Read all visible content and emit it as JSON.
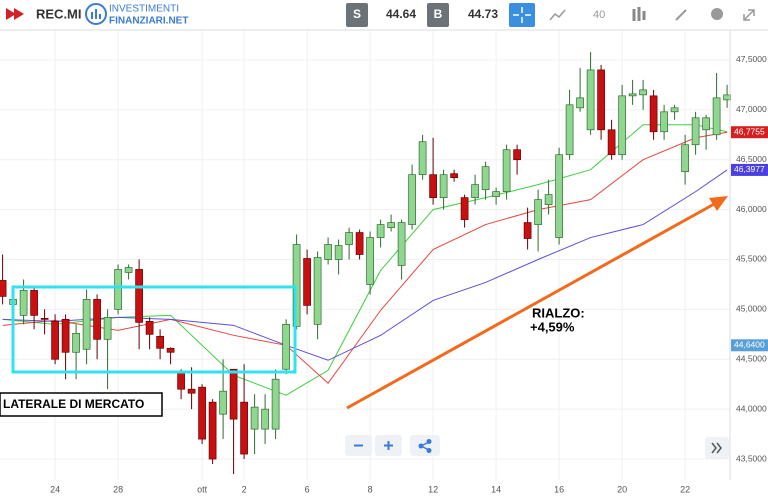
{
  "toolbar": {
    "symbol": "REC.MI",
    "brand_top": "INVESTIMENTI",
    "brand_bottom": "FINANZIARI.NET",
    "sell_label": "S",
    "sell": 44.64,
    "buy_label": "B",
    "buy": 44.73,
    "interval": "40"
  },
  "chart_data": {
    "type": "candlestick",
    "categories": [
      null,
      null,
      null,
      null,
      null,
      "24",
      null,
      null,
      null,
      null,
      null,
      "28",
      null,
      null,
      null,
      null,
      null,
      null,
      null,
      "ott",
      null,
      null,
      null,
      "2",
      null,
      null,
      null,
      null,
      null,
      "6",
      null,
      null,
      null,
      null,
      null,
      "8",
      null,
      null,
      null,
      null,
      null,
      "12",
      null,
      null,
      null,
      null,
      null,
      "14",
      null,
      null,
      null,
      null,
      null,
      "16",
      null,
      null,
      null,
      null,
      null,
      "20",
      null,
      null,
      null,
      null,
      null,
      "22",
      null,
      null,
      null,
      null
    ],
    "open": [
      45.29,
      45.05,
      44.94,
      45.19,
      44.91,
      44.88,
      44.9,
      44.57,
      44.6,
      45.1,
      44.7,
      45.0,
      45.37,
      45.4,
      44.88,
      44.73,
      44.61,
      44.37,
      44.2,
      44.22,
      44.07,
      43.95,
      44.4,
      44.07,
      43.8,
      43.8,
      43.8,
      44.4,
      44.83,
      45.51,
      44.85,
      45.5,
      45.5,
      45.65,
      45.77,
      45.25,
      45.72,
      45.82,
      45.44,
      45.85,
      46.35,
      46.35,
      46.12,
      46.36,
      46.12,
      46.12,
      46.2,
      46.13,
      46.18,
      46.6,
      45.87,
      45.85,
      46.05,
      45.72,
      46.55,
      47.02,
      46.8,
      47.4,
      46.8,
      46.55,
      47.14,
      47.15,
      47.14,
      46.78,
      46.98,
      46.38,
      46.65,
      46.8,
      46.75,
      47.1
    ],
    "high": [
      45.55,
      45.15,
      45.3,
      45.22,
      45.0,
      44.95,
      44.95,
      44.85,
      45.2,
      45.15,
      45.0,
      45.45,
      45.45,
      45.5,
      44.92,
      44.8,
      44.62,
      44.4,
      44.42,
      44.25,
      44.1,
      44.5,
      44.4,
      44.45,
      44.15,
      44.15,
      44.4,
      44.9,
      45.75,
      45.6,
      45.58,
      45.72,
      45.7,
      45.82,
      45.8,
      45.78,
      45.9,
      45.95,
      45.9,
      46.45,
      46.75,
      46.72,
      46.4,
      46.4,
      46.15,
      46.35,
      46.48,
      46.22,
      46.65,
      46.65,
      46.02,
      46.2,
      46.3,
      46.62,
      47.2,
      47.42,
      47.58,
      47.45,
      46.9,
      47.25,
      47.3,
      47.3,
      47.2,
      47.05,
      47.05,
      46.75,
      46.98,
      46.95,
      47.37,
      47.25
    ],
    "low": [
      45.05,
      45.0,
      44.85,
      44.8,
      44.75,
      44.45,
      44.3,
      44.3,
      44.45,
      44.5,
      44.2,
      44.95,
      45.3,
      44.6,
      44.6,
      44.5,
      44.45,
      44.1,
      44.0,
      43.65,
      43.45,
      43.7,
      43.35,
      43.5,
      43.55,
      43.65,
      43.7,
      44.35,
      44.8,
      44.95,
      44.7,
      45.45,
      45.35,
      45.5,
      45.5,
      45.15,
      45.62,
      45.78,
      45.3,
      45.8,
      46.3,
      46.05,
      46.0,
      46.28,
      45.82,
      46.05,
      46.1,
      46.05,
      46.1,
      46.35,
      45.6,
      45.58,
      45.95,
      45.65,
      46.5,
      46.98,
      46.75,
      46.7,
      46.5,
      46.5,
      47.05,
      47.0,
      46.7,
      46.7,
      46.9,
      46.25,
      46.55,
      46.6,
      46.7,
      47.02
    ],
    "close": [
      45.13,
      45.1,
      45.19,
      44.94,
      44.9,
      44.5,
      44.57,
      44.76,
      45.1,
      44.7,
      44.92,
      45.4,
      45.42,
      44.87,
      44.75,
      44.61,
      44.57,
      44.2,
      44.16,
      43.7,
      43.5,
      44.18,
      43.9,
      43.55,
      44.02,
      44.0,
      44.3,
      44.85,
      45.65,
      45.04,
      45.52,
      45.65,
      45.64,
      45.77,
      45.55,
      45.72,
      45.85,
      45.87,
      45.87,
      46.35,
      46.68,
      46.12,
      46.35,
      46.32,
      45.9,
      46.25,
      46.43,
      46.18,
      46.6,
      46.5,
      45.71,
      46.1,
      46.15,
      46.55,
      47.05,
      47.12,
      47.4,
      46.8,
      46.55,
      47.14,
      47.16,
      47.2,
      46.78,
      46.98,
      47.02,
      46.65,
      46.92,
      46.92,
      47.12,
      47.15
    ],
    "up_color": "#8fd68f",
    "down_color": "#c81010",
    "lines": [
      {
        "color": "#3dd13d",
        "x": [
          0,
          5,
          11,
          16,
          22,
          27,
          31,
          36,
          41,
          46,
          51,
          56,
          61,
          66,
          69
        ],
        "values": [
          44.9,
          44.85,
          44.92,
          44.94,
          44.34,
          44.14,
          44.39,
          45.39,
          46.0,
          46.12,
          46.25,
          46.4,
          46.85,
          46.85,
          46.78
        ]
      },
      {
        "color": "#e8453c",
        "x": [
          0,
          5,
          11,
          16,
          22,
          27,
          31,
          36,
          41,
          46,
          51,
          56,
          61,
          66,
          69
        ],
        "values": [
          44.84,
          44.89,
          44.79,
          44.9,
          44.74,
          44.64,
          44.26,
          44.99,
          45.6,
          45.85,
          46.0,
          46.1,
          46.5,
          46.72,
          46.7755
        ]
      },
      {
        "color": "#5b4fd9",
        "x": [
          0,
          5,
          11,
          16,
          22,
          27,
          31,
          36,
          41,
          46,
          51,
          56,
          61,
          66,
          69
        ],
        "values": [
          44.9,
          44.88,
          44.92,
          44.9,
          44.84,
          44.64,
          44.49,
          44.74,
          45.09,
          45.27,
          45.5,
          45.72,
          45.85,
          46.18,
          46.3977
        ]
      }
    ],
    "price_tags": [
      {
        "value": 46.7755,
        "label": "46,7755",
        "color": "#d42020"
      },
      {
        "value": 46.3977,
        "label": "46,3977",
        "color": "#4a3fe0"
      },
      {
        "value": 44.64,
        "label": "44,6400",
        "color": "#5aa0d8"
      }
    ],
    "ylim": [
      43.29,
      47.8
    ],
    "yticks": [
      {
        "value": 43.5,
        "label": "43,5000"
      },
      {
        "value": 44,
        "label": "44,0000"
      },
      {
        "value": 44.5,
        "label": "44,5000"
      },
      {
        "value": 45,
        "label": "45,0000"
      },
      {
        "value": 45.5,
        "label": "45,5000"
      },
      {
        "value": 46,
        "label": "46,0000"
      },
      {
        "value": 46.5,
        "label": "46,5000"
      },
      {
        "value": 47,
        "label": "47,0000"
      },
      {
        "value": 47.5,
        "label": "47,5000"
      }
    ],
    "grid": true,
    "annotations": {
      "range": "LATERALE DI MERCATO",
      "rise_title": "RIALZO:",
      "rise_value": "+4,59%"
    }
  }
}
